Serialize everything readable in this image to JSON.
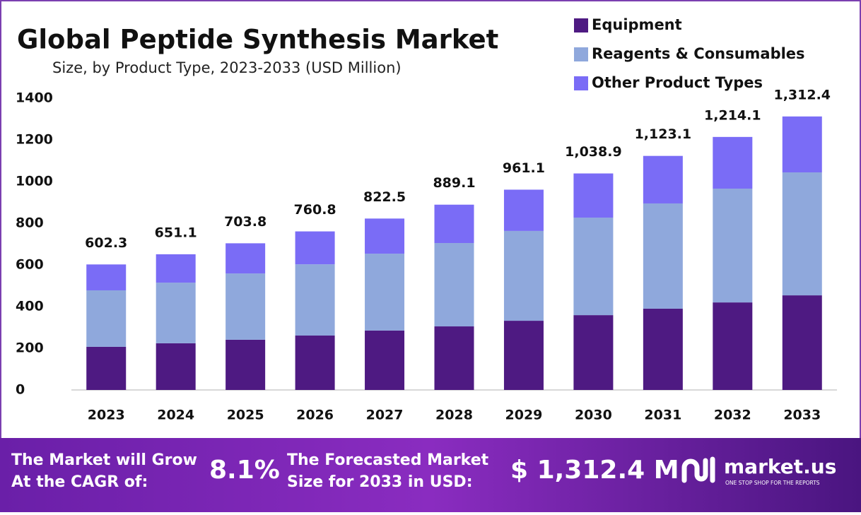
{
  "chart_data": {
    "type": "stacked-bar",
    "title": "Global Peptide Synthesis Market",
    "subtitle": "Size, by Product Type, 2023-2033 (USD Million)",
    "categories": [
      "2023",
      "2024",
      "2025",
      "2026",
      "2027",
      "2028",
      "2029",
      "2030",
      "2031",
      "2032",
      "2033"
    ],
    "series": [
      {
        "name": "Equipment",
        "color": "#4e1a82",
        "values": [
          207,
          224,
          241,
          261,
          285,
          305,
          332,
          359,
          390,
          420,
          454
        ]
      },
      {
        "name": "Reagents & Consumables",
        "color": "#8fa8dc",
        "values": [
          271,
          291,
          318,
          342,
          369,
          400,
          431,
          468,
          505,
          546,
          590
        ]
      },
      {
        "name": "Other Product Types",
        "color": "#7a6cf6",
        "values": [
          124.3,
          136.1,
          144.8,
          157.8,
          168.5,
          184.1,
          198.1,
          211.9,
          228.1,
          248.1,
          268.4
        ]
      }
    ],
    "totals": [
      602.3,
      651.1,
      703.8,
      760.8,
      822.5,
      889.1,
      961.1,
      1038.9,
      1123.1,
      1214.1,
      1312.4
    ],
    "total_labels": [
      "602.3",
      "651.1",
      "703.8",
      "760.8",
      "822.5",
      "889.1",
      "961.1",
      "1,038.9",
      "1,123.1",
      "1,214.1",
      "1,312.4"
    ],
    "ylim": [
      0,
      1400
    ],
    "yticks": [
      0,
      200,
      400,
      600,
      800,
      1000,
      1200,
      1400
    ],
    "grid": false,
    "legend": "top-right"
  },
  "footer": {
    "cagr_label": [
      "The Market will Grow",
      "At the CAGR of:"
    ],
    "cagr": "8.1%",
    "forecast_label": [
      "The Forecasted Market",
      "Size for 2033 in USD:"
    ],
    "forecast": "$ 1,312.4 M",
    "brand": "market.us",
    "tagline": "ONE STOP SHOP FOR THE REPORTS"
  }
}
